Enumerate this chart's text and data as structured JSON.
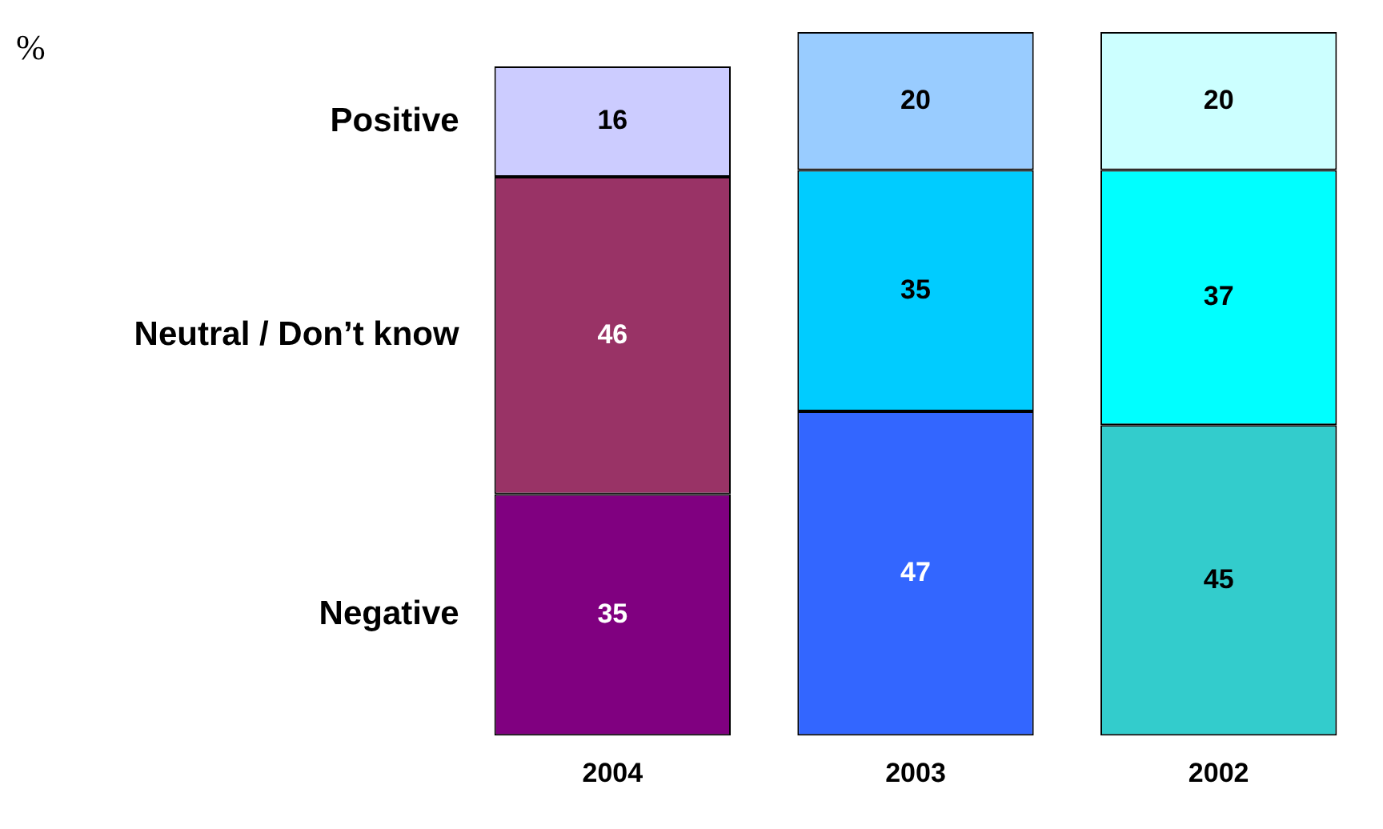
{
  "chart_data": {
    "type": "bar",
    "annotations": [
      "%"
    ],
    "categories": [
      "2004",
      "2003",
      "2002"
    ],
    "stacked": true,
    "data_labels": true,
    "legend": false,
    "grid": false,
    "series": [
      {
        "name": "Negative",
        "colors": [
          "#800080",
          "#3366ff",
          "#33cccc"
        ],
        "values": [
          35,
          47,
          45
        ]
      },
      {
        "name": "Neutral / Don’t know",
        "colors": [
          "#993366",
          "#00ccff",
          "#00ffff"
        ],
        "values": [
          46,
          35,
          37
        ]
      },
      {
        "name": "Positive",
        "colors": [
          "#ccccff",
          "#99ccff",
          "#ccffff"
        ],
        "values": [
          16,
          20,
          20
        ]
      }
    ]
  }
}
